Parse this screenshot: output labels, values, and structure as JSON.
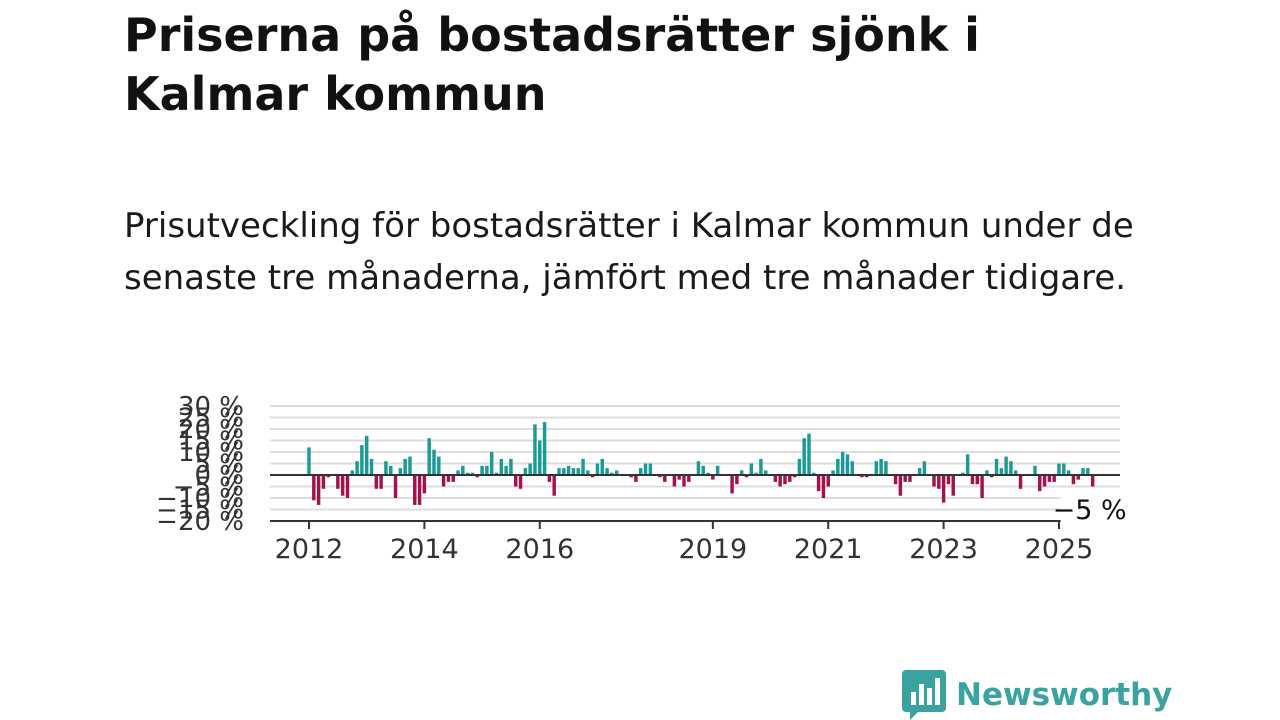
{
  "header": {
    "title": "Priserna på bostadsrätter sjönk i Kalmar kommun",
    "subtitle": "Prisutveckling för bostadsrätter i Kalmar kommun under de senaste tre månaderna, jämfört med tre månader tidigare."
  },
  "logo": {
    "text": "Newsworthy",
    "icon": "bar-chart-speech-bubble-icon",
    "color": "#3aa3a0"
  },
  "chart_data": {
    "type": "bar",
    "x_start": "2012-01",
    "x_step": "month",
    "xticks": [
      "2012",
      "2014",
      "2016",
      "2019",
      "2021",
      "2023",
      "2025"
    ],
    "ylim": [
      -20,
      30
    ],
    "yticks": [
      "30 %",
      "25 %",
      "20 %",
      "15 %",
      "10 %",
      "5 %",
      "0 %",
      "−5 %",
      "−10 %",
      "−15 %",
      "−20 %"
    ],
    "grid": true,
    "colors": {
      "positive": "#1a9b95",
      "negative": "#a3124e"
    },
    "last_value_label": "−5 %",
    "values": [
      12,
      -11,
      -13,
      -6,
      -1,
      0,
      -6,
      -9,
      -10,
      2,
      6,
      13,
      17,
      7,
      -6,
      -6,
      6,
      4,
      -10,
      3,
      7,
      8,
      -13,
      -13,
      -8,
      16,
      11,
      8,
      -5,
      -3,
      -3,
      2,
      4,
      1,
      1,
      -1,
      4,
      4,
      10,
      1,
      7,
      4,
      7,
      -5,
      -6,
      3,
      5,
      22,
      15,
      23,
      -3,
      -9,
      3,
      3,
      4,
      3,
      3,
      7,
      2,
      -1,
      5,
      7,
      3,
      1,
      2,
      0,
      0,
      -1,
      -3,
      3,
      5,
      5,
      0,
      -1,
      -3,
      0,
      -5,
      -2,
      -5,
      -3,
      0,
      6,
      4,
      1,
      -2,
      4,
      0,
      0,
      -8,
      -4,
      2,
      -1,
      5,
      1,
      7,
      2,
      0,
      -3,
      -5,
      -4,
      -3,
      -1,
      7,
      16,
      18,
      1,
      -7,
      -10,
      -5,
      2,
      7,
      10,
      9,
      6,
      0,
      -1,
      -1,
      0,
      6,
      7,
      6,
      0,
      -4,
      -9,
      -3,
      -3,
      0,
      3,
      6,
      0,
      -5,
      -6,
      -12,
      -4,
      -9,
      0,
      1,
      9,
      -4,
      -4,
      -10,
      2,
      -1,
      7,
      3,
      8,
      6,
      2,
      -6,
      0,
      0,
      4,
      -7,
      -5,
      -3,
      -3,
      5,
      5,
      2,
      -4,
      -2,
      3,
      3,
      -5
    ]
  }
}
